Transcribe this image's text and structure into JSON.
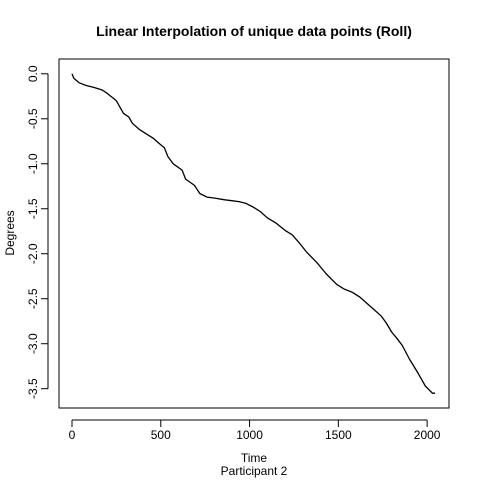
{
  "chart_data": {
    "type": "line",
    "title": "Linear Interpolation of unique data points (Roll)",
    "xlabel": "Time",
    "subtitle": "Participant  2",
    "ylabel": "Degrees",
    "xlim": [
      0,
      2050
    ],
    "ylim": [
      -3.57,
      0.02
    ],
    "x_ticks": [
      0,
      500,
      1000,
      1500,
      2000
    ],
    "x_tick_labels": [
      "0",
      "500",
      "1000",
      "1500",
      "2000"
    ],
    "y_ticks": [
      0.0,
      -0.5,
      -1.0,
      -1.5,
      -2.0,
      -2.5,
      -3.0,
      -3.5
    ],
    "y_tick_labels": [
      "0.0",
      "-0.5",
      "-1.0",
      "-1.5",
      "-2.0",
      "-2.5",
      "-3.0",
      "-3.5"
    ],
    "grid": false,
    "series": [
      {
        "x": [
          0,
          10,
          40,
          80,
          120,
          170,
          200,
          250,
          270,
          290,
          320,
          340,
          380,
          420,
          460,
          500,
          520,
          540,
          570,
          620,
          640,
          690,
          720,
          760,
          800,
          860,
          900,
          940,
          980,
          1020,
          1060,
          1100,
          1150,
          1200,
          1240,
          1280,
          1320,
          1380,
          1430,
          1460,
          1490,
          1530,
          1580,
          1620,
          1660,
          1700,
          1740,
          1770,
          1800,
          1830,
          1860,
          1900,
          1950,
          1990,
          2030,
          2045
        ],
        "y": [
          0.0,
          -0.05,
          -0.1,
          -0.13,
          -0.15,
          -0.18,
          -0.22,
          -0.3,
          -0.37,
          -0.44,
          -0.48,
          -0.55,
          -0.62,
          -0.67,
          -0.72,
          -0.79,
          -0.82,
          -0.92,
          -1.0,
          -1.07,
          -1.17,
          -1.24,
          -1.33,
          -1.37,
          -1.38,
          -1.4,
          -1.41,
          -1.42,
          -1.44,
          -1.48,
          -1.53,
          -1.6,
          -1.66,
          -1.74,
          -1.79,
          -1.88,
          -1.98,
          -2.1,
          -2.22,
          -2.28,
          -2.34,
          -2.39,
          -2.43,
          -2.48,
          -2.55,
          -2.62,
          -2.69,
          -2.77,
          -2.87,
          -2.94,
          -3.02,
          -3.17,
          -3.33,
          -3.47,
          -3.55,
          -3.55
        ]
      }
    ]
  }
}
